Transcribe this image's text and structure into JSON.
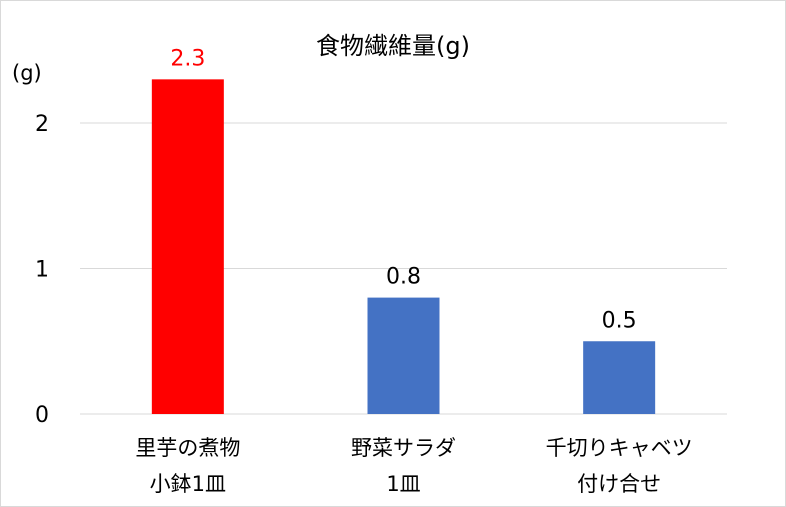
{
  "chart_data": {
    "type": "bar",
    "title": "食物繊維量(g)",
    "ylabel": "(g)",
    "xlabel": "",
    "ylim": [
      0,
      2.3
    ],
    "yticks": [
      0,
      1,
      2
    ],
    "grid": true,
    "categories": [
      [
        "里芋の煮物",
        "小鉢1皿"
      ],
      [
        "野菜サラダ",
        "1皿"
      ],
      [
        "千切りキャベツ",
        "付け合せ"
      ]
    ],
    "values": [
      2.3,
      0.8,
      0.5
    ],
    "data_labels": [
      "2.3",
      "0.8",
      "0.5"
    ],
    "colors": [
      "#ff0000",
      "#4472c4",
      "#4472c4"
    ],
    "label_colors": [
      "#ff0000",
      "#000000",
      "#000000"
    ]
  }
}
